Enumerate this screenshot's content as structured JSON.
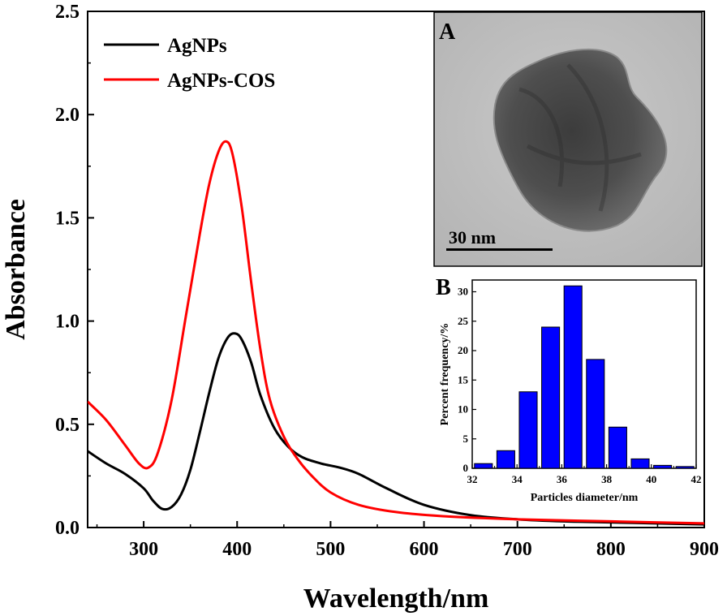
{
  "chart_data": [
    {
      "type": "line",
      "title": "",
      "xlabel": "Wavelength/nm",
      "ylabel": "Absorbance",
      "xlim": [
        240,
        900
      ],
      "ylim": [
        0,
        2.5
      ],
      "xticks": [
        "300",
        "400",
        "500",
        "600",
        "700",
        "800",
        "900"
      ],
      "yticks": [
        "0.0",
        "0.5",
        "1.0",
        "1.5",
        "2.0",
        "2.5"
      ],
      "legend_position": "top-left",
      "series": [
        {
          "name": "AgNPs",
          "color": "#000000",
          "points": [
            [
              240,
              0.37
            ],
            [
              260,
              0.31
            ],
            [
              280,
              0.26
            ],
            [
              300,
              0.19
            ],
            [
              310,
              0.13
            ],
            [
              320,
              0.09
            ],
            [
              330,
              0.1
            ],
            [
              340,
              0.16
            ],
            [
              350,
              0.28
            ],
            [
              360,
              0.46
            ],
            [
              370,
              0.65
            ],
            [
              380,
              0.82
            ],
            [
              390,
              0.92
            ],
            [
              398,
              0.94
            ],
            [
              405,
              0.91
            ],
            [
              415,
              0.8
            ],
            [
              425,
              0.64
            ],
            [
              440,
              0.48
            ],
            [
              455,
              0.39
            ],
            [
              470,
              0.34
            ],
            [
              490,
              0.31
            ],
            [
              510,
              0.29
            ],
            [
              530,
              0.26
            ],
            [
              560,
              0.19
            ],
            [
              600,
              0.11
            ],
            [
              650,
              0.06
            ],
            [
              700,
              0.04
            ],
            [
              750,
              0.03
            ],
            [
              800,
              0.025
            ],
            [
              850,
              0.02
            ],
            [
              900,
              0.015
            ]
          ]
        },
        {
          "name": "AgNPs-COS",
          "color": "#ff0000",
          "points": [
            [
              240,
              0.61
            ],
            [
              260,
              0.52
            ],
            [
              280,
              0.4
            ],
            [
              295,
              0.31
            ],
            [
              305,
              0.29
            ],
            [
              315,
              0.36
            ],
            [
              330,
              0.62
            ],
            [
              345,
              1.02
            ],
            [
              360,
              1.42
            ],
            [
              370,
              1.66
            ],
            [
              380,
              1.82
            ],
            [
              388,
              1.87
            ],
            [
              395,
              1.81
            ],
            [
              405,
              1.55
            ],
            [
              415,
              1.19
            ],
            [
              425,
              0.86
            ],
            [
              435,
              0.62
            ],
            [
              450,
              0.44
            ],
            [
              465,
              0.33
            ],
            [
              480,
              0.25
            ],
            [
              500,
              0.17
            ],
            [
              530,
              0.11
            ],
            [
              570,
              0.075
            ],
            [
              620,
              0.055
            ],
            [
              700,
              0.04
            ],
            [
              800,
              0.03
            ],
            [
              900,
              0.02
            ]
          ]
        }
      ]
    },
    {
      "type": "bar",
      "panel_label": "B",
      "xlabel": "Particles diameter/nm",
      "ylabel": "Percent frequency/%",
      "xlim": [
        32,
        42
      ],
      "ylim": [
        0,
        32
      ],
      "xticks": [
        "32",
        "34",
        "36",
        "38",
        "40",
        "42"
      ],
      "yticks": [
        "0",
        "5",
        "10",
        "15",
        "20",
        "25",
        "30"
      ],
      "bar_color": "#0000ff",
      "bins": [
        {
          "center": 32.5,
          "value": 0.8
        },
        {
          "center": 33.5,
          "value": 3.0
        },
        {
          "center": 34.5,
          "value": 13.0
        },
        {
          "center": 35.5,
          "value": 24.0
        },
        {
          "center": 36.5,
          "value": 31.0
        },
        {
          "center": 37.5,
          "value": 18.5
        },
        {
          "center": 38.5,
          "value": 7.0
        },
        {
          "center": 39.5,
          "value": 1.6
        },
        {
          "center": 40.5,
          "value": 0.5
        },
        {
          "center": 41.5,
          "value": 0.3
        }
      ]
    }
  ],
  "inset_a": {
    "panel_label": "A",
    "scale_bar_label": "30 nm"
  }
}
